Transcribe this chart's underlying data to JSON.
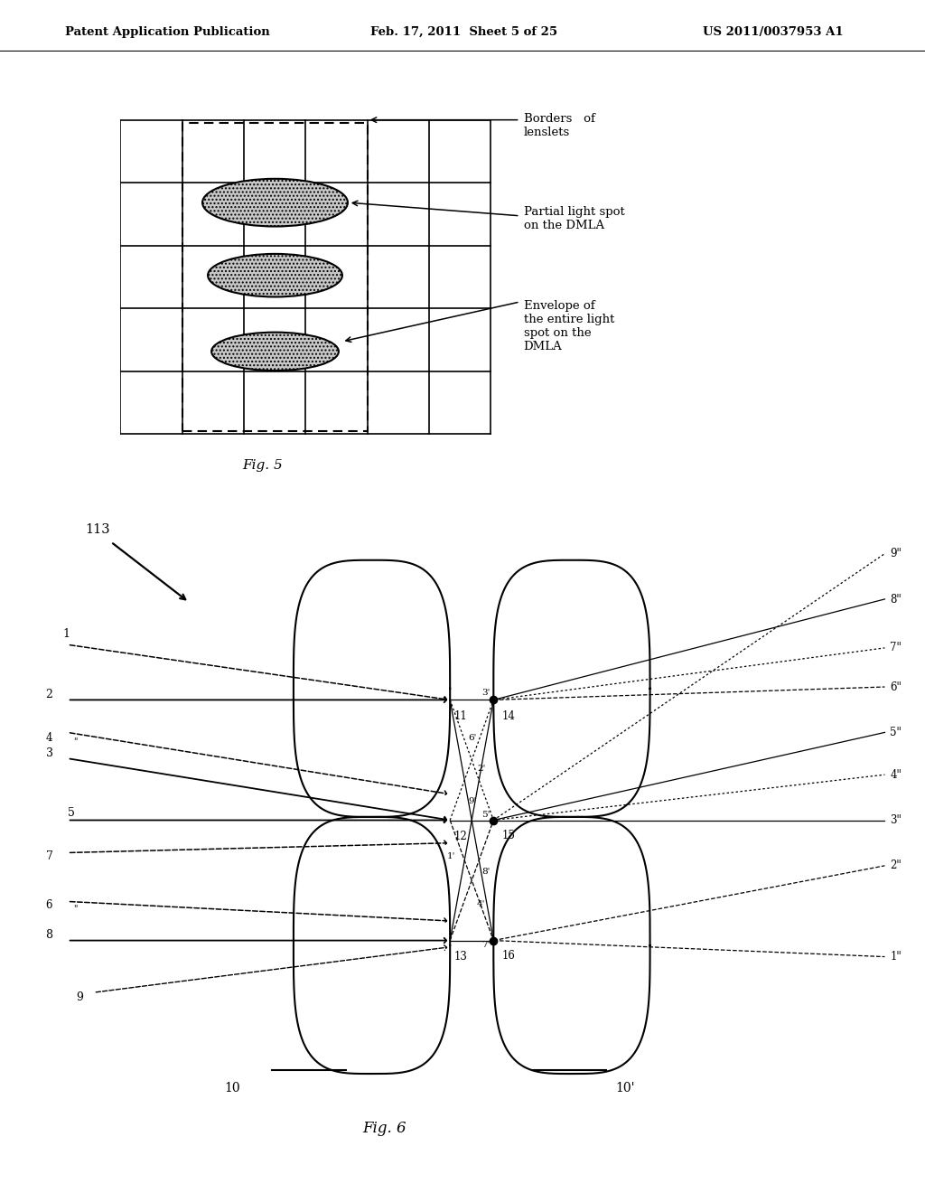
{
  "header_left": "Patent Application Publication",
  "header_mid": "Feb. 17, 2011  Sheet 5 of 25",
  "header_right": "US 2011/0037953 A1",
  "fig5_caption": "Fig. 5",
  "fig6_caption": "Fig. 6",
  "bg": "#ffffff",
  "label_borders": "Borders   of\nlenslets",
  "label_partial": "Partial light spot\non the DMLA",
  "label_envelope": "Envelope of\nthe entire light\nspot on the\nDMLA"
}
